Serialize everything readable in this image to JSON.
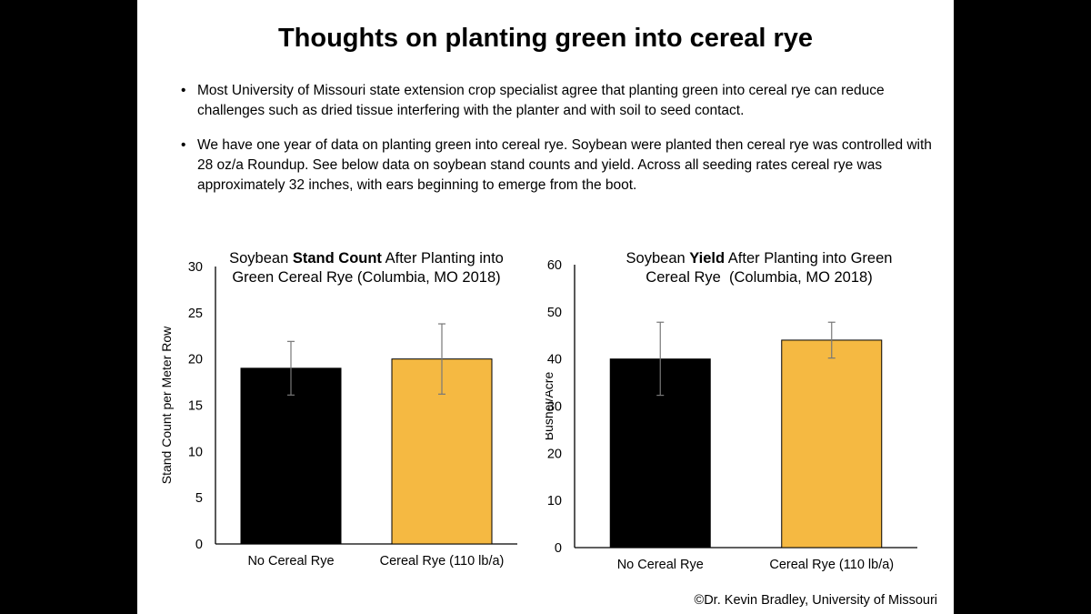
{
  "slide": {
    "title": "Thoughts on planting green into cereal rye",
    "bullets": [
      "Most University of Missouri state extension crop specialist agree that planting green into cereal rye can reduce challenges such as dried tissue interfering with the planter and with soil to seed contact.",
      "We have one year of data on planting green into cereal rye.  Soybean were planted then cereal rye was controlled with 28 oz/a Roundup.  See below data on soybean stand counts and yield.  Across all seeding rates cereal rye was approximately 32 inches, with ears beginning to emerge from the boot."
    ],
    "bullet_glyph": "•",
    "credit": "©Dr. Kevin Bradley, University of Missouri"
  },
  "chart_data": [
    {
      "type": "bar",
      "title_lines": [
        [
          {
            "text": "Soybean ",
            "bold": false
          },
          {
            "text": "Stand Count",
            "bold": true
          },
          {
            "text": " After Planting into",
            "bold": false
          }
        ],
        [
          {
            "text": "Green Cereal Rye (Columbia, MO 2018)",
            "bold": false
          }
        ]
      ],
      "ylabel": "Stand Count per Meter Row",
      "xlabel": "",
      "categories": [
        "No Cereal Rye",
        "Cereal Rye (110 lb/a)"
      ],
      "values": [
        19,
        20
      ],
      "error_low": [
        16.1,
        16.2
      ],
      "error_high": [
        21.9,
        23.8
      ],
      "colors": [
        "#000000",
        "#F5B942"
      ],
      "ylim": [
        0,
        30
      ],
      "yticks": [
        0,
        5,
        10,
        15,
        20,
        25,
        30
      ],
      "grid": false
    },
    {
      "type": "bar",
      "title_lines": [
        [
          {
            "text": "Soybean ",
            "bold": false
          },
          {
            "text": "Yield",
            "bold": true
          },
          {
            "text": " After Planting into Green",
            "bold": false
          }
        ],
        [
          {
            "text": "Cereal Rye  (Columbia, MO 2018)",
            "bold": false
          }
        ]
      ],
      "ylabel": "Bushel/Acre",
      "xlabel": "",
      "categories": [
        "No Cereal Rye",
        "Cereal Rye (110 lb/a)"
      ],
      "values": [
        40,
        44
      ],
      "error_low": [
        32.3,
        40.2
      ],
      "error_high": [
        47.8,
        47.8
      ],
      "colors": [
        "#000000",
        "#F5B942"
      ],
      "ylim": [
        0,
        60
      ],
      "yticks": [
        0,
        10,
        20,
        30,
        40,
        50,
        60
      ],
      "grid": false
    }
  ]
}
